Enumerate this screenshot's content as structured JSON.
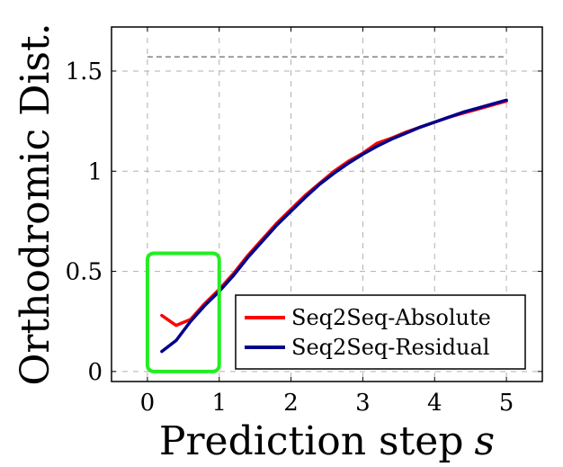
{
  "chart_data": {
    "type": "line",
    "title": "",
    "xlabel": "Prediction step",
    "xlabel_var": "s",
    "ylabel": "Orthodromic Dist.",
    "xlim": [
      -0.5,
      5.5
    ],
    "ylim": [
      -0.05,
      1.72
    ],
    "xticks": [
      0,
      1,
      2,
      3,
      4,
      5
    ],
    "xtick_labels": [
      "0",
      "1",
      "2",
      "3",
      "4",
      "5"
    ],
    "yticks": [
      0,
      0.5,
      1,
      1.5
    ],
    "ytick_labels": [
      "0",
      "0.5",
      "1",
      "1.5"
    ],
    "grid": true,
    "reference_line": {
      "y": 1.571,
      "style": "dashed"
    },
    "legend_position": "bottom-right",
    "highlight_box": {
      "x": [
        0,
        1
      ],
      "y": [
        0,
        0.59
      ],
      "color": "#22ee22"
    },
    "series": [
      {
        "name": "Seq2Seq-Absolute",
        "color": "#ff0000",
        "x": [
          0.2,
          0.4,
          0.6,
          0.8,
          1.0,
          1.2,
          1.4,
          1.6,
          1.8,
          2.0,
          2.2,
          2.4,
          2.6,
          2.8,
          3.0,
          3.2,
          3.4,
          3.6,
          3.8,
          4.0,
          4.2,
          4.4,
          4.6,
          4.8,
          5.0
        ],
        "y": [
          0.28,
          0.23,
          0.26,
          0.34,
          0.41,
          0.49,
          0.58,
          0.66,
          0.74,
          0.81,
          0.88,
          0.94,
          1.0,
          1.05,
          1.09,
          1.14,
          1.165,
          1.195,
          1.22,
          1.245,
          1.27,
          1.29,
          1.31,
          1.33,
          1.35
        ]
      },
      {
        "name": "Seq2Seq-Residual",
        "color": "#00008b",
        "x": [
          0.2,
          0.4,
          0.6,
          0.8,
          1.0,
          1.2,
          1.4,
          1.6,
          1.8,
          2.0,
          2.2,
          2.4,
          2.6,
          2.8,
          3.0,
          3.2,
          3.4,
          3.6,
          3.8,
          4.0,
          4.2,
          4.4,
          4.6,
          4.8,
          5.0
        ],
        "y": [
          0.1,
          0.155,
          0.25,
          0.33,
          0.4,
          0.48,
          0.57,
          0.65,
          0.73,
          0.8,
          0.87,
          0.935,
          0.99,
          1.04,
          1.085,
          1.125,
          1.16,
          1.19,
          1.22,
          1.245,
          1.27,
          1.295,
          1.315,
          1.335,
          1.355
        ]
      }
    ]
  }
}
